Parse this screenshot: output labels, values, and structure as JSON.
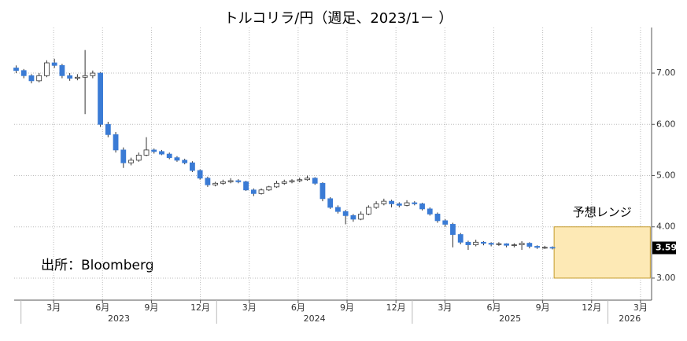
{
  "chart_data": {
    "type": "candlestick",
    "title": "トルコリラ/円（週足、2023/1－ ）",
    "annotation": "出所：Bloomberg",
    "x": [
      -0.3,
      0.17,
      0.64,
      1.11,
      1.58,
      2.05,
      2.52,
      2.99,
      3.46,
      3.93,
      4.4,
      4.87,
      5.34,
      5.81,
      6.28,
      6.75,
      7.22,
      7.69,
      8.16,
      8.63,
      9.1,
      9.57,
      10.04,
      10.51,
      10.98,
      11.45,
      11.92,
      12.39,
      12.86,
      13.33,
      13.8,
      14.27,
      14.74,
      15.21,
      15.68,
      16.15,
      16.62,
      17.09,
      17.56,
      18.03,
      18.5,
      18.97,
      19.44,
      19.91,
      20.38,
      20.85,
      21.32,
      21.79,
      22.26,
      22.73,
      23.2,
      23.67,
      24.14,
      24.61,
      25.08,
      25.55,
      26.02,
      26.49,
      26.96,
      27.43,
      27.9,
      28.37,
      28.84,
      29.31,
      29.78,
      30.25,
      30.72,
      31.19,
      31.66,
      32.13,
      32.6
    ],
    "series": [
      {
        "up_color": "#ffffff",
        "down_color": "#3a7bd5",
        "values": [
          [
            7.1,
            7.15,
            7.0,
            7.05
          ],
          [
            7.05,
            7.08,
            6.9,
            6.95
          ],
          [
            6.95,
            6.98,
            6.8,
            6.85
          ],
          [
            6.85,
            7.0,
            6.82,
            6.95
          ],
          [
            6.95,
            7.25,
            6.92,
            7.2
          ],
          [
            7.2,
            7.28,
            7.1,
            7.15
          ],
          [
            7.15,
            7.18,
            6.9,
            6.95
          ],
          [
            6.95,
            7.0,
            6.85,
            6.9
          ],
          [
            6.9,
            6.98,
            6.86,
            6.92
          ],
          [
            6.92,
            7.45,
            6.2,
            6.95
          ],
          [
            6.95,
            7.05,
            6.9,
            7.0
          ],
          [
            7.0,
            7.02,
            5.95,
            6.0
          ],
          [
            6.0,
            6.05,
            5.75,
            5.8
          ],
          [
            5.8,
            5.85,
            5.45,
            5.5
          ],
          [
            5.5,
            5.55,
            5.15,
            5.25
          ],
          [
            5.25,
            5.35,
            5.2,
            5.3
          ],
          [
            5.3,
            5.45,
            5.27,
            5.4
          ],
          [
            5.4,
            5.75,
            5.38,
            5.5
          ],
          [
            5.5,
            5.53,
            5.43,
            5.47
          ],
          [
            5.47,
            5.5,
            5.4,
            5.42
          ],
          [
            5.42,
            5.45,
            5.32,
            5.35
          ],
          [
            5.35,
            5.38,
            5.27,
            5.3
          ],
          [
            5.3,
            5.33,
            5.22,
            5.25
          ],
          [
            5.25,
            5.28,
            5.07,
            5.1
          ],
          [
            5.1,
            5.12,
            4.92,
            4.95
          ],
          [
            4.95,
            4.98,
            4.78,
            4.82
          ],
          [
            4.82,
            4.88,
            4.79,
            4.85
          ],
          [
            4.85,
            4.92,
            4.82,
            4.88
          ],
          [
            4.88,
            4.95,
            4.85,
            4.9
          ],
          [
            4.9,
            4.93,
            4.85,
            4.88
          ],
          [
            4.88,
            4.9,
            4.7,
            4.72
          ],
          [
            4.72,
            4.75,
            4.6,
            4.65
          ],
          [
            4.65,
            4.75,
            4.63,
            4.72
          ],
          [
            4.72,
            4.8,
            4.7,
            4.78
          ],
          [
            4.78,
            4.9,
            4.76,
            4.85
          ],
          [
            4.85,
            4.92,
            4.82,
            4.88
          ],
          [
            4.88,
            4.93,
            4.85,
            4.9
          ],
          [
            4.9,
            4.96,
            4.87,
            4.92
          ],
          [
            4.92,
            5.0,
            4.9,
            4.95
          ],
          [
            4.95,
            4.97,
            4.82,
            4.85
          ],
          [
            4.85,
            4.87,
            4.5,
            4.55
          ],
          [
            4.55,
            4.58,
            4.35,
            4.38
          ],
          [
            4.38,
            4.42,
            4.26,
            4.3
          ],
          [
            4.3,
            4.33,
            4.05,
            4.22
          ],
          [
            4.22,
            4.25,
            4.1,
            4.15
          ],
          [
            4.15,
            4.3,
            4.13,
            4.25
          ],
          [
            4.25,
            4.42,
            4.23,
            4.38
          ],
          [
            4.38,
            4.5,
            4.35,
            4.45
          ],
          [
            4.45,
            4.55,
            4.42,
            4.5
          ],
          [
            4.5,
            4.53,
            4.38,
            4.45
          ],
          [
            4.45,
            4.48,
            4.38,
            4.42
          ],
          [
            4.42,
            4.52,
            4.4,
            4.47
          ],
          [
            4.47,
            4.5,
            4.42,
            4.45
          ],
          [
            4.45,
            4.47,
            4.32,
            4.35
          ],
          [
            4.35,
            4.38,
            4.22,
            4.25
          ],
          [
            4.25,
            4.28,
            4.08,
            4.12
          ],
          [
            4.12,
            4.15,
            4.0,
            4.05
          ],
          [
            4.05,
            4.08,
            3.6,
            3.85
          ],
          [
            3.85,
            3.88,
            3.66,
            3.7
          ],
          [
            3.7,
            3.73,
            3.55,
            3.65
          ],
          [
            3.65,
            3.75,
            3.62,
            3.7
          ],
          [
            3.7,
            3.72,
            3.64,
            3.68
          ],
          [
            3.68,
            3.7,
            3.62,
            3.66
          ],
          [
            3.66,
            3.7,
            3.63,
            3.67
          ],
          [
            3.67,
            3.68,
            3.6,
            3.64
          ],
          [
            3.64,
            3.68,
            3.6,
            3.65
          ],
          [
            3.65,
            3.72,
            3.55,
            3.68
          ],
          [
            3.68,
            3.7,
            3.58,
            3.62
          ],
          [
            3.62,
            3.64,
            3.57,
            3.6
          ],
          [
            3.6,
            3.63,
            3.57,
            3.6
          ],
          [
            3.6,
            3.62,
            3.56,
            3.59
          ]
        ]
      }
    ],
    "xlim": [
      -0.42,
      38.68
    ],
    "xticks": [
      {
        "value": 2,
        "label": "3月"
      },
      {
        "value": 5,
        "label": "6月"
      },
      {
        "value": 8,
        "label": "9月"
      },
      {
        "value": 11,
        "label": "12月"
      },
      {
        "value": 14,
        "label": "3月"
      },
      {
        "value": 17,
        "label": "6月"
      },
      {
        "value": 20,
        "label": "9月"
      },
      {
        "value": 23,
        "label": "12月"
      },
      {
        "value": 26,
        "label": "3月"
      },
      {
        "value": 29,
        "label": "6月"
      },
      {
        "value": 32,
        "label": "9月"
      },
      {
        "value": 35,
        "label": "12月"
      },
      {
        "value": 38,
        "label": "3月"
      }
    ],
    "years": [
      {
        "value": 0,
        "label": "2023"
      },
      {
        "value": 12,
        "label": "2024"
      },
      {
        "value": 24,
        "label": "2025"
      },
      {
        "value": 36,
        "label": "2026"
      }
    ],
    "ylim": [
      2.57,
      7.89
    ],
    "yticks": [
      {
        "value": 3,
        "label": "3.00"
      },
      {
        "value": 4,
        "label": "4.00"
      },
      {
        "value": 5,
        "label": "5.00"
      },
      {
        "value": 6,
        "label": "6.00"
      },
      {
        "value": 7,
        "label": "7.00"
      }
    ],
    "grid": true,
    "forecast": {
      "label": "予想レンジ",
      "x": [
        32.7,
        38.6
      ],
      "y": [
        3,
        4
      ],
      "color": "#fde9b5",
      "border": "#c49a2a"
    }
  }
}
